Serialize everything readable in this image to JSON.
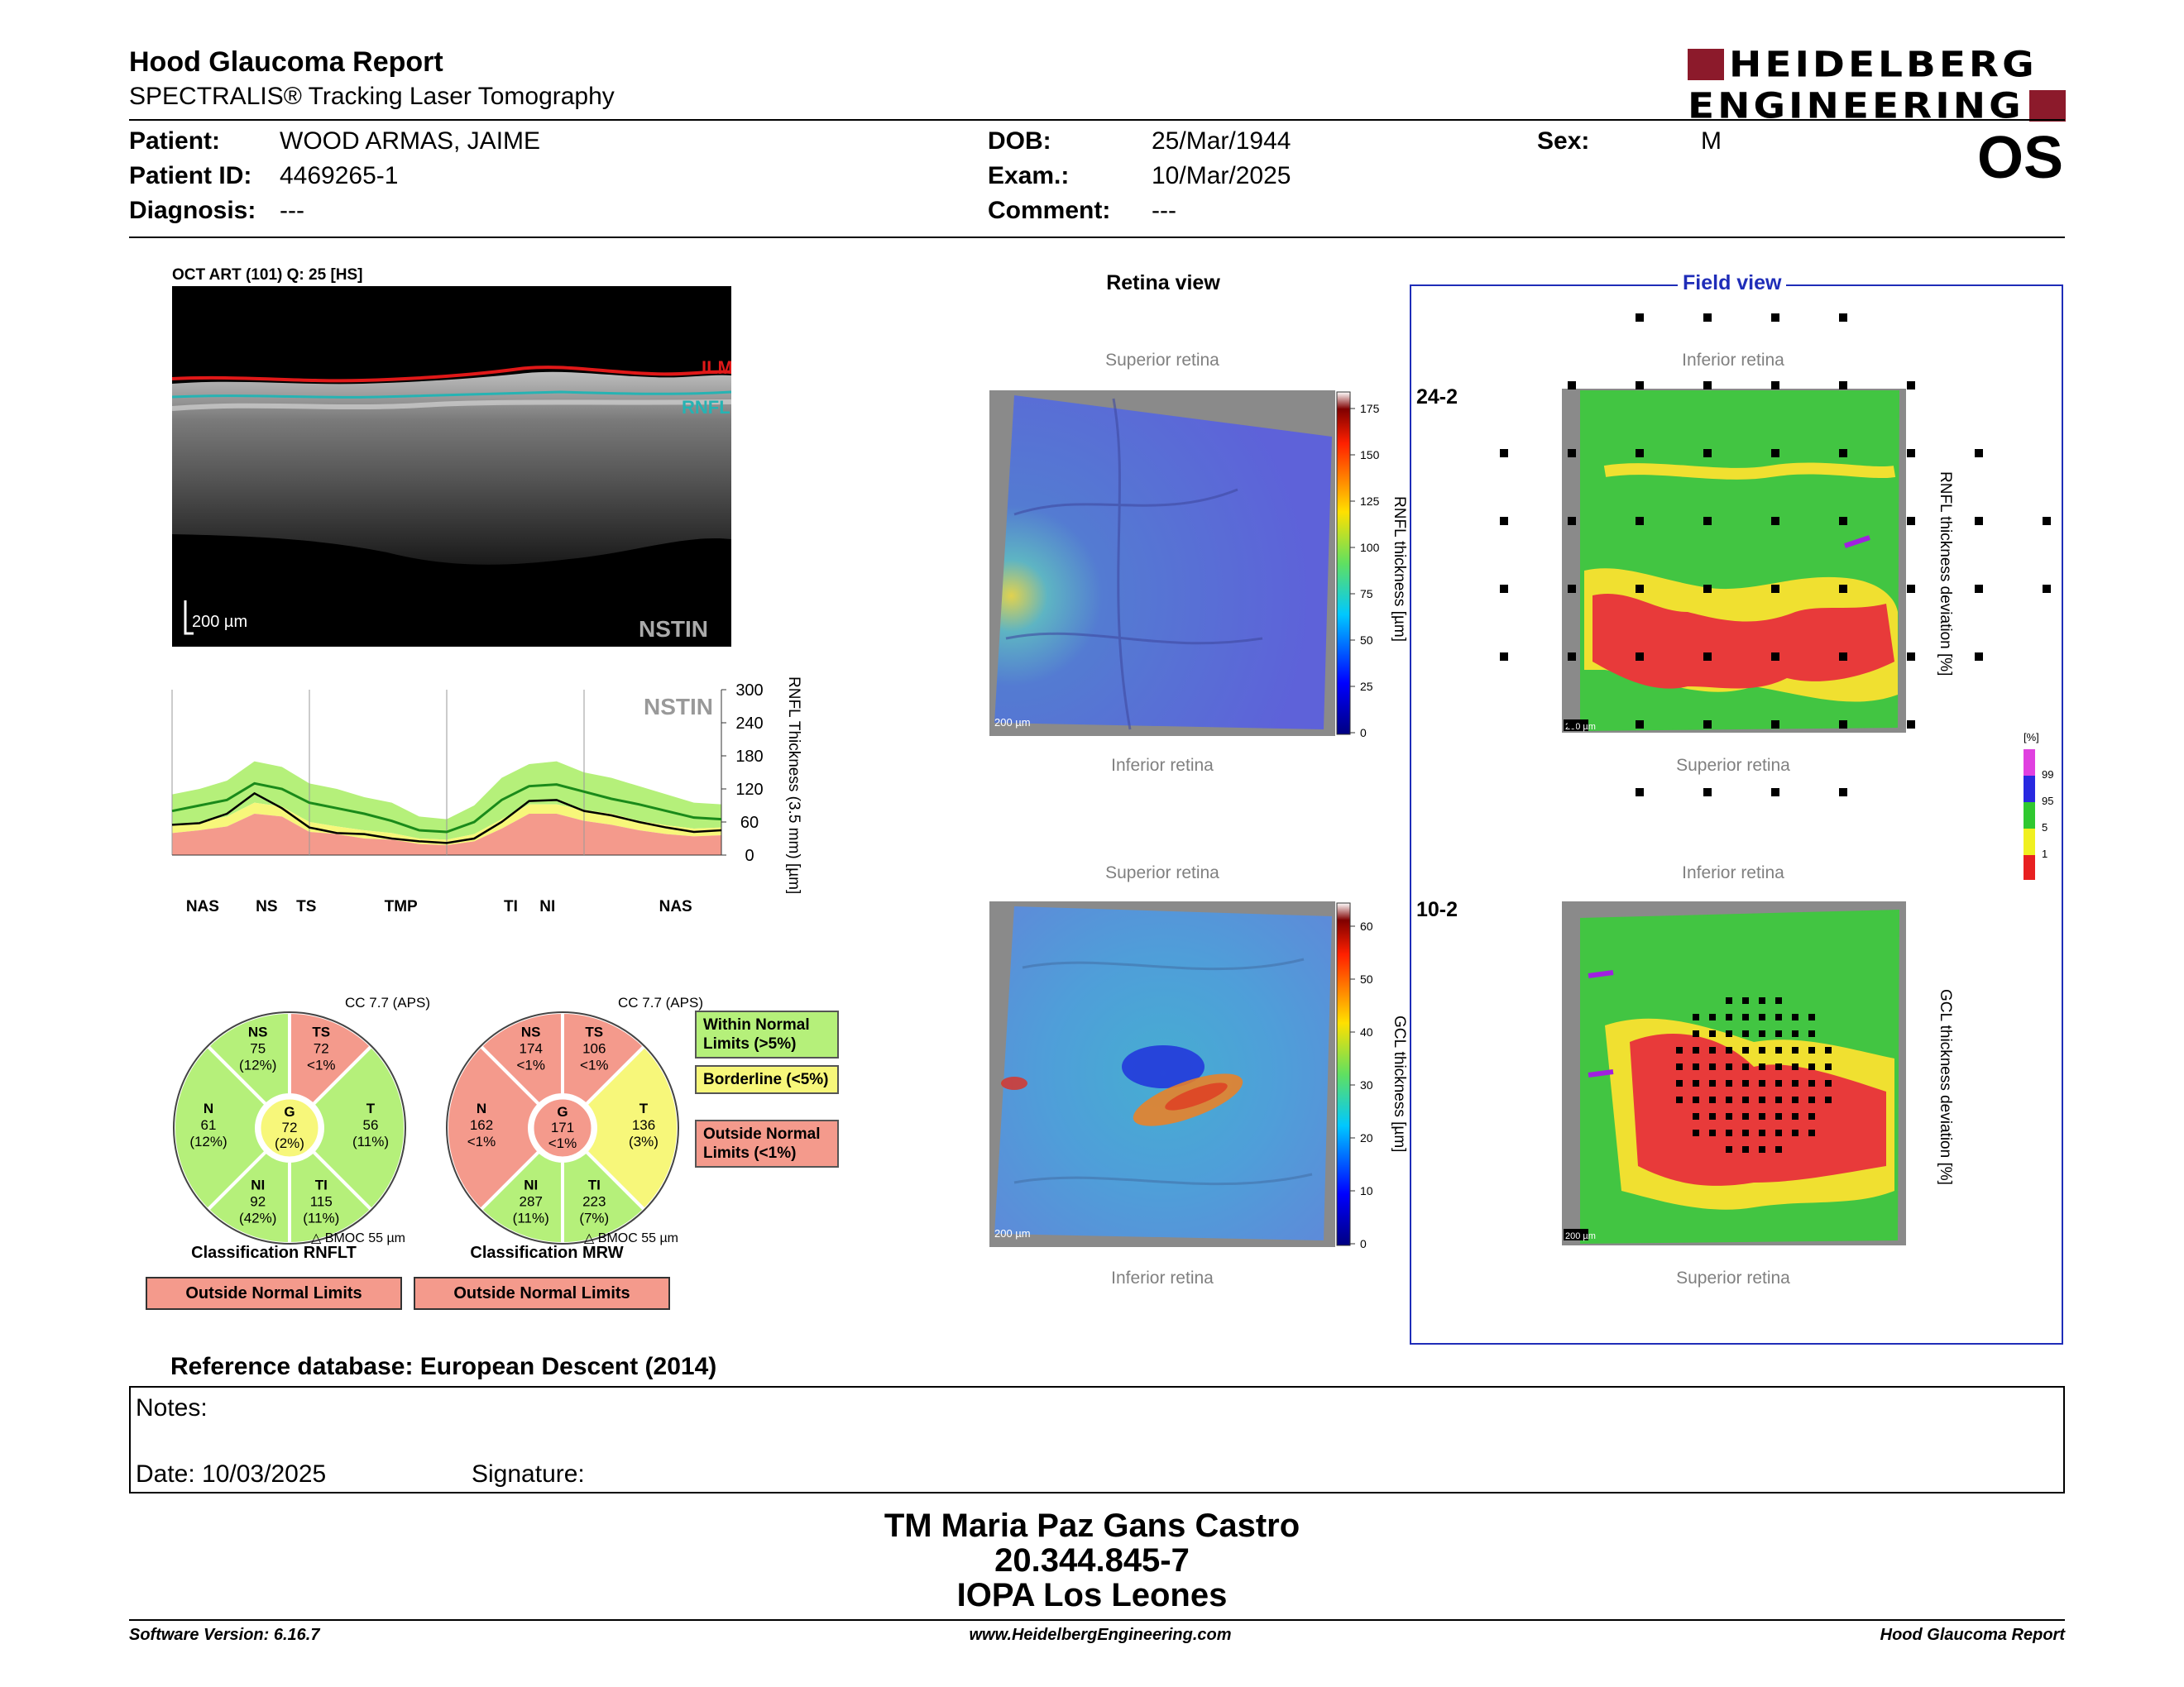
{
  "header": {
    "title": "Hood Glaucoma Report",
    "subtitle": "SPECTRALIS® Tracking Laser Tomography",
    "brand_line1": "HEIDELBERG",
    "brand_line2": "ENGINEERING",
    "brand_color": "#8c1a2b",
    "eye": "OS"
  },
  "patient": {
    "patient_label": "Patient:",
    "patient_value": "WOOD ARMAS, JAIME",
    "id_label": "Patient ID:",
    "id_value": "4469265-1",
    "diagnosis_label": "Diagnosis:",
    "diagnosis_value": "---",
    "dob_label": "DOB:",
    "dob_value": "25/Mar/1944",
    "exam_label": "Exam.:",
    "exam_value": "10/Mar/2025",
    "comment_label": "Comment:",
    "comment_value": "---",
    "sex_label": "Sex:",
    "sex_value": "M"
  },
  "oct": {
    "scan_label": "OCT ART (101) Q: 25 [HS]",
    "ilm_label": "ILM",
    "rnfl_label": "RNFL",
    "scale_label": "200 µm",
    "nstin_label": "NSTIN"
  },
  "chart_data": {
    "type": "line",
    "title": "NSTIN",
    "ylabel": "RNFL Thickness (3.5 mm) [µm]",
    "ylim": [
      0,
      300
    ],
    "yticks": [
      "300",
      "240",
      "180",
      "120",
      "60",
      "0"
    ],
    "xticks": [
      "NAS",
      "NS",
      "TS",
      "TMP",
      "TI",
      "NI",
      "NAS"
    ],
    "x": [
      0,
      18,
      36,
      54,
      72,
      90,
      108,
      126,
      144,
      162,
      180,
      198,
      216,
      234,
      252,
      270,
      288,
      306,
      324,
      342,
      360
    ],
    "series": [
      {
        "values": [
          55,
          58,
          75,
          112,
          85,
          50,
          40,
          38,
          30,
          25,
          22,
          30,
          60,
          98,
          100,
          80,
          72,
          60,
          50,
          42,
          45
        ]
      },
      {
        "values": [
          80,
          90,
          100,
          130,
          120,
          95,
          85,
          75,
          62,
          45,
          42,
          60,
          100,
          125,
          128,
          115,
          102,
          92,
          80,
          68,
          65
        ]
      }
    ],
    "bands": {
      "outside_upper": [
        110,
        120,
        135,
        170,
        160,
        130,
        120,
        105,
        95,
        70,
        65,
        90,
        140,
        165,
        170,
        150,
        140,
        125,
        110,
        95,
        92
      ],
      "borderline_lower": [
        55,
        60,
        70,
        95,
        88,
        60,
        52,
        45,
        40,
        30,
        28,
        38,
        65,
        92,
        92,
        82,
        75,
        62,
        54,
        48,
        50
      ],
      "outside_lower": [
        40,
        45,
        52,
        75,
        70,
        42,
        38,
        30,
        28,
        20,
        18,
        25,
        48,
        75,
        75,
        62,
        55,
        45,
        38,
        34,
        36
      ]
    },
    "colors": {
      "measured": "#000000",
      "normal_mean": "#1a8a1a",
      "within_normal": "#b5f07a",
      "borderline": "#f7f77a",
      "outside_normal": "#f49a8c"
    }
  },
  "rnflt_wheel": {
    "cc": "CC 7.7 (APS)",
    "sectors": {
      "NS": {
        "label": "NS",
        "value": "75",
        "pct": "(12%)",
        "status": "normal"
      },
      "TS": {
        "label": "TS",
        "value": "72",
        "pct": "<1%",
        "status": "outside"
      },
      "T": {
        "label": "T",
        "value": "56",
        "pct": "(11%)",
        "status": "normal"
      },
      "TI": {
        "label": "TI",
        "value": "115",
        "pct": "(11%)",
        "status": "normal"
      },
      "NI": {
        "label": "NI",
        "value": "92",
        "pct": "(42%)",
        "status": "normal"
      },
      "N": {
        "label": "N",
        "value": "61",
        "pct": "(12%)",
        "status": "normal"
      },
      "G": {
        "label": "G",
        "value": "72",
        "pct": "(2%)",
        "status": "borderline"
      }
    },
    "bmo_note": "BMOC 55 µm",
    "classification_label": "Classification RNFLT",
    "classification_value": "Outside Normal Limits"
  },
  "mrw_wheel": {
    "cc": "CC 7.7 (APS)",
    "sectors": {
      "NS": {
        "label": "NS",
        "value": "174",
        "pct": "<1%",
        "status": "outside"
      },
      "TS": {
        "label": "TS",
        "value": "106",
        "pct": "<1%",
        "status": "outside"
      },
      "T": {
        "label": "T",
        "value": "136",
        "pct": "(3%)",
        "status": "borderline"
      },
      "TI": {
        "label": "TI",
        "value": "223",
        "pct": "(7%)",
        "status": "normal"
      },
      "NI": {
        "label": "NI",
        "value": "287",
        "pct": "(11%)",
        "status": "normal"
      },
      "N": {
        "label": "N",
        "value": "162",
        "pct": "<1%",
        "status": "outside"
      },
      "G": {
        "label": "G",
        "value": "171",
        "pct": "<1%",
        "status": "outside"
      }
    },
    "bmo_note": "BMOC 55 µm",
    "classification_label": "Classification MRW",
    "classification_value": "Outside Normal Limits"
  },
  "legend": {
    "within": "Within Normal Limits (>5%)",
    "borderline": "Borderline (<5%)",
    "outside": "Outside Normal Limits (<1%)"
  },
  "retina_view": {
    "title": "Retina view",
    "superior": "Superior retina",
    "inferior": "Inferior retina",
    "rnfl_scale_label": "RNFL thickness [µm]",
    "rnfl_ticks": [
      "175",
      "150",
      "125",
      "100",
      "75",
      "50",
      "25",
      "0"
    ],
    "gcl_scale_label": "GCL thickness [µm]",
    "gcl_ticks": [
      "60",
      "50",
      "40",
      "30",
      "20",
      "10",
      "0"
    ],
    "scale_bar": "200 µm"
  },
  "field_view": {
    "title": "Field view",
    "label_242": "24-2",
    "label_102": "10-2",
    "inferior": "Inferior retina",
    "superior": "Superior retina",
    "rnfl_dev_label": "RNFL thickness deviation [%]",
    "gcl_dev_label": "GCL thickness deviation [%]",
    "pct_unit": "[%]",
    "pct_ticks": [
      "99",
      "95",
      "5",
      "1"
    ],
    "scale_bar": "200 µm"
  },
  "reference": "Reference database: European Descent (2014)",
  "notes": {
    "notes_label": "Notes:",
    "date_label": "Date: 10/03/2025",
    "signature_label": "Signature:"
  },
  "signature_block": {
    "name": "TM Maria Paz Gans Castro",
    "rut": "20.344.845-7",
    "institution": "IOPA Los Leones"
  },
  "footer": {
    "software": "Software Version: 6.16.7",
    "website": "www.HeidelbergEngineering.com",
    "report": "Hood Glaucoma Report"
  }
}
